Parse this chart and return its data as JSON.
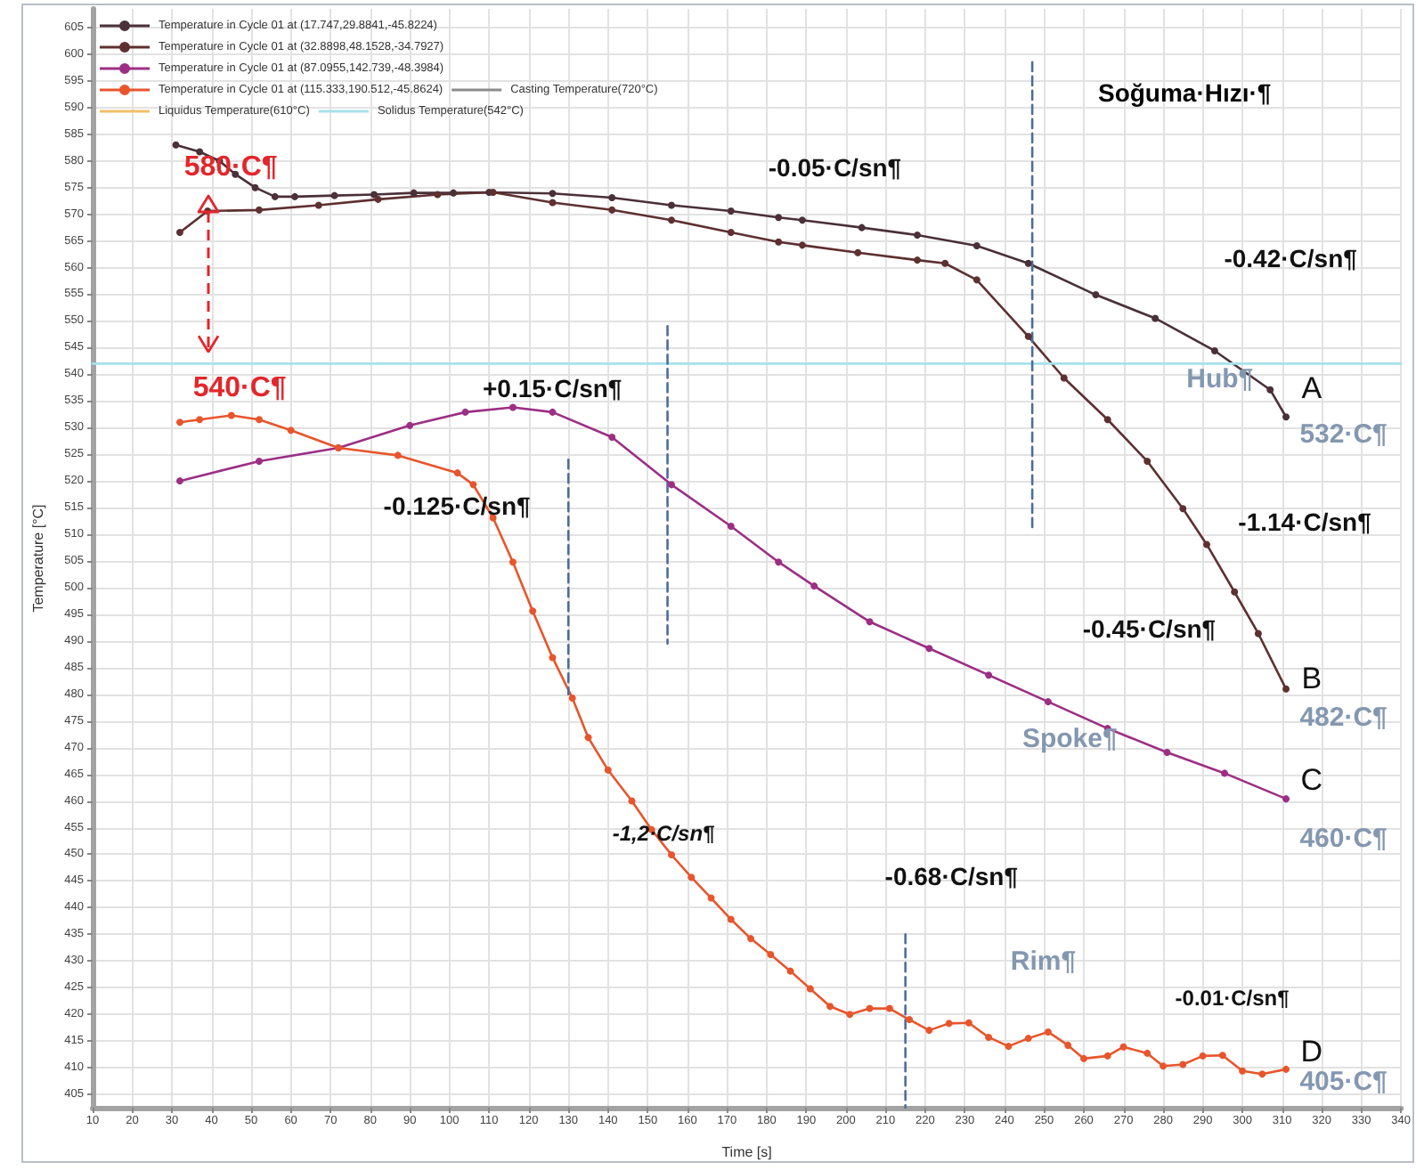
{
  "chart_data": {
    "type": "line",
    "xlabel": "Time [s]",
    "ylabel": "Temperature [°C]",
    "xlim": [
      10,
      340
    ],
    "xticks": [
      10,
      20,
      30,
      40,
      50,
      60,
      70,
      80,
      90,
      100,
      110,
      120,
      130,
      140,
      150,
      160,
      170,
      180,
      190,
      200,
      210,
      220,
      230,
      240,
      250,
      260,
      270,
      280,
      290,
      300,
      310,
      320,
      330,
      340
    ],
    "ylim": [
      402.5,
      608.5
    ],
    "yticks": [
      405,
      410,
      415,
      420,
      425,
      430,
      435,
      440,
      445,
      450,
      455,
      460,
      465,
      470,
      475,
      480,
      485,
      490,
      495,
      500,
      505,
      510,
      515,
      520,
      525,
      530,
      535,
      540,
      545,
      550,
      555,
      560,
      565,
      570,
      575,
      580,
      585,
      590,
      595,
      600,
      605
    ],
    "grid": true,
    "legend": "top left",
    "marker": "circle",
    "line_style": "solid",
    "series": [
      {
        "name": "Temperature in Cycle 01 at (17.747,29.8841,-45.8224)",
        "color": "#4a3038",
        "x": [
          31,
          37,
          42,
          46,
          51,
          56,
          61,
          71,
          81,
          91,
          101,
          110,
          126,
          141,
          156,
          171,
          183,
          189,
          204,
          218,
          233,
          246,
          263,
          278,
          293,
          307,
          311
        ],
        "values": [
          583,
          581.7,
          580,
          577.5,
          575,
          573.3,
          573.3,
          573.5,
          573.7,
          574,
          574,
          574.1,
          573.9,
          573.1,
          571.7,
          570.6,
          569.4,
          568.9,
          567.5,
          566.1,
          564.1,
          560.8,
          554.9,
          550.5,
          544.4,
          537.1,
          532
        ]
      },
      {
        "name": "Temperature in Cycle 01 at (32.8898,48.1528,-34.7927)",
        "color": "#5e3030",
        "x": [
          32,
          39,
          52,
          67,
          82,
          97,
          111,
          126,
          141,
          156,
          171,
          183,
          189,
          203,
          218,
          225,
          233,
          246,
          255,
          266,
          276,
          285,
          291,
          298,
          304,
          311
        ],
        "values": [
          566.6,
          570.6,
          570.8,
          571.7,
          572.8,
          573.7,
          574.1,
          572.2,
          570.8,
          568.9,
          566.6,
          564.8,
          564.2,
          562.8,
          561.4,
          560.8,
          557.7,
          547.1,
          539.3,
          531.5,
          523.7,
          514.8,
          508.1,
          499.2,
          491.4,
          481
        ]
      },
      {
        "name": "Temperature in Cycle 01 at (87.0955,142.739,-48.3984)",
        "color": "#9c2f84",
        "x": [
          32,
          52,
          72,
          90,
          104,
          116,
          126,
          141,
          156,
          171,
          183,
          192,
          206,
          221,
          236,
          251,
          266,
          281,
          295.5,
          311
        ],
        "values": [
          520,
          523.7,
          526.2,
          530.4,
          532.9,
          533.8,
          532.9,
          528.2,
          519.3,
          511.5,
          504.8,
          500.3,
          493.6,
          488.6,
          483.6,
          478.6,
          473.6,
          469.1,
          465.2,
          460.4
        ]
      },
      {
        "name": "Temperature in Cycle 01 at (115.333,190.512,-45.8624)",
        "color": "#e8552c",
        "x": [
          32,
          37,
          45,
          52,
          60,
          72,
          87,
          102,
          106,
          111,
          116,
          121,
          126,
          131,
          135,
          140,
          146,
          151,
          156,
          161,
          166,
          171,
          176,
          181,
          186,
          191,
          196,
          201,
          206,
          211,
          216,
          221,
          226,
          231,
          236,
          241,
          246,
          251,
          256,
          260,
          266,
          270,
          276,
          280,
          285,
          290,
          295,
          300,
          305,
          311
        ],
        "values": [
          531,
          531.5,
          532.3,
          531.5,
          529.5,
          526.2,
          524.8,
          521.5,
          519.3,
          513.1,
          504.8,
          495.6,
          486.9,
          479.3,
          471.9,
          465.8,
          460,
          454.6,
          449.9,
          445.7,
          441.8,
          437.8,
          434.2,
          431.2,
          428.1,
          424.8,
          421.5,
          420,
          421.1,
          421.1,
          419,
          417,
          418.3,
          418.4,
          415.7,
          414,
          415.5,
          416.7,
          414.2,
          411.7,
          412.2,
          413.9,
          412.7,
          410.3,
          410.6,
          412.2,
          412.3,
          409.4,
          408.8,
          409.7
        ]
      },
      {
        "name": "Casting Temperature(720°C)",
        "color": "#8c8c8c",
        "marker": "none"
      },
      {
        "name": "Liquidus Temperature(610°C)",
        "color": "#f2bf6a",
        "marker": "none"
      },
      {
        "name": "Solidus Temperature(542°C)",
        "color": "#a6e2ea",
        "marker": "none",
        "x": [
          10,
          340
        ],
        "values": [
          542,
          542
        ]
      },
      {
        "color": "#4d6d9c",
        "marker": "none",
        "line_style": "dashed",
        "x": [
          130,
          130
        ],
        "values": [
          524,
          480
        ]
      },
      {
        "color": "#4d6d9c",
        "marker": "none",
        "line_style": "dashed",
        "x": [
          155,
          155
        ],
        "values": [
          549,
          489.5
        ]
      },
      {
        "color": "#4d6d9c",
        "marker": "none",
        "line_style": "dashed",
        "x": [
          247,
          247
        ],
        "values": [
          598.5,
          510.5
        ]
      },
      {
        "color": "#4d6d9c",
        "marker": "none",
        "line_style": "dashed",
        "x": [
          215,
          215
        ],
        "values": [
          435,
          402.5
        ]
      }
    ],
    "annotations": [
      "Soğuma·Hızı·¶",
      {
        "text": "580·C¶",
        "x": 39,
        "y": 570.6
      },
      {
        "text": "540·C¶",
        "x": 39,
        "y": 542
      },
      "-0.05·C/sn¶",
      "-0.42·C/sn¶",
      "+0.15·C/sn¶",
      "-0.125·C/sn¶",
      "Hub¶",
      "A",
      "532·C¶",
      "-1.14·C/sn¶",
      "-0.45·C/sn¶",
      "B",
      "482·C¶",
      "Spoke¶",
      "C",
      "460·C¶",
      "-1,2·C/sn¶",
      "-0.68·C/sn¶",
      "Rim¶",
      "-0.01·C/sn¶",
      "D",
      "405·C¶"
    ]
  }
}
